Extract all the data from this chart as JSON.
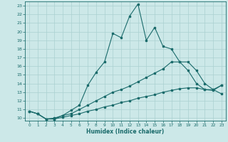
{
  "xlabel": "Humidex (Indice chaleur)",
  "xlim": [
    -0.5,
    23.5
  ],
  "ylim": [
    9.7,
    23.5
  ],
  "xticks": [
    0,
    1,
    2,
    3,
    4,
    5,
    6,
    7,
    8,
    9,
    10,
    11,
    12,
    13,
    14,
    15,
    16,
    17,
    18,
    19,
    20,
    21,
    22,
    23
  ],
  "yticks": [
    10,
    11,
    12,
    13,
    14,
    15,
    16,
    17,
    18,
    19,
    20,
    21,
    22,
    23
  ],
  "background_color": "#cce8e8",
  "grid_color": "#aad0d0",
  "line_color": "#1a6b6b",
  "line1_x": [
    0,
    1,
    2,
    3,
    4,
    5,
    6,
    7,
    8,
    9,
    10,
    11,
    12,
    13,
    14,
    15,
    16,
    17,
    18,
    19,
    20,
    21,
    22,
    23
  ],
  "line1_y": [
    10.8,
    10.5,
    9.9,
    9.9,
    10.3,
    10.9,
    11.5,
    13.8,
    15.3,
    16.5,
    19.8,
    19.3,
    21.8,
    23.2,
    19.0,
    20.5,
    18.3,
    18.0,
    16.5,
    15.5,
    14.0,
    13.3,
    13.3,
    12.8
  ],
  "line2_x": [
    0,
    1,
    2,
    3,
    4,
    5,
    6,
    7,
    8,
    9,
    10,
    11,
    12,
    13,
    14,
    15,
    16,
    17,
    18,
    19,
    20,
    21,
    22,
    23
  ],
  "line2_y": [
    10.8,
    10.5,
    9.9,
    10.0,
    10.3,
    10.5,
    11.0,
    11.5,
    12.0,
    12.5,
    13.0,
    13.3,
    13.7,
    14.2,
    14.7,
    15.2,
    15.7,
    16.5,
    16.5,
    16.5,
    15.5,
    14.0,
    13.3,
    13.8
  ],
  "line3_x": [
    0,
    1,
    2,
    3,
    4,
    5,
    6,
    7,
    8,
    9,
    10,
    11,
    12,
    13,
    14,
    15,
    16,
    17,
    18,
    19,
    20,
    21,
    22,
    23
  ],
  "line3_y": [
    10.8,
    10.5,
    9.9,
    9.9,
    10.1,
    10.3,
    10.5,
    10.8,
    11.0,
    11.3,
    11.5,
    11.8,
    12.0,
    12.3,
    12.5,
    12.7,
    13.0,
    13.2,
    13.4,
    13.5,
    13.5,
    13.3,
    13.2,
    13.8
  ]
}
